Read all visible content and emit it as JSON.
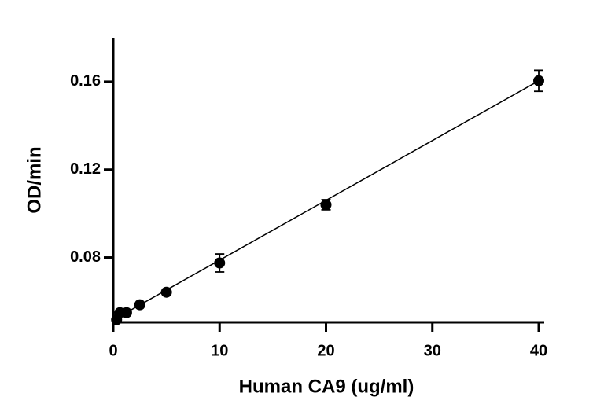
{
  "chart_data": {
    "type": "scatter",
    "x_label": "Human CA9 (ug/ml)",
    "y_label": "OD/min",
    "x": [
      0.3125,
      0.625,
      1.25,
      2.5,
      5,
      10,
      20,
      40
    ],
    "series": [
      {
        "color": "#000000",
        "values": [
          0.0517,
          0.0549,
          0.0549,
          0.0585,
          0.0642,
          0.0775,
          0.104,
          0.1604
        ],
        "errors": [
          null,
          null,
          null,
          null,
          null,
          0.0041,
          0.0023,
          0.0048
        ]
      }
    ],
    "fit": {
      "x": [
        0,
        40
      ],
      "values": [
        0.0516,
        0.1604
      ]
    },
    "xlim": [
      0,
      40
    ],
    "xticks": [
      0,
      10,
      20,
      30,
      40
    ],
    "ylim": [
      0.0505,
      0.18
    ],
    "yticks": [
      0.08,
      0.12,
      0.16
    ]
  }
}
